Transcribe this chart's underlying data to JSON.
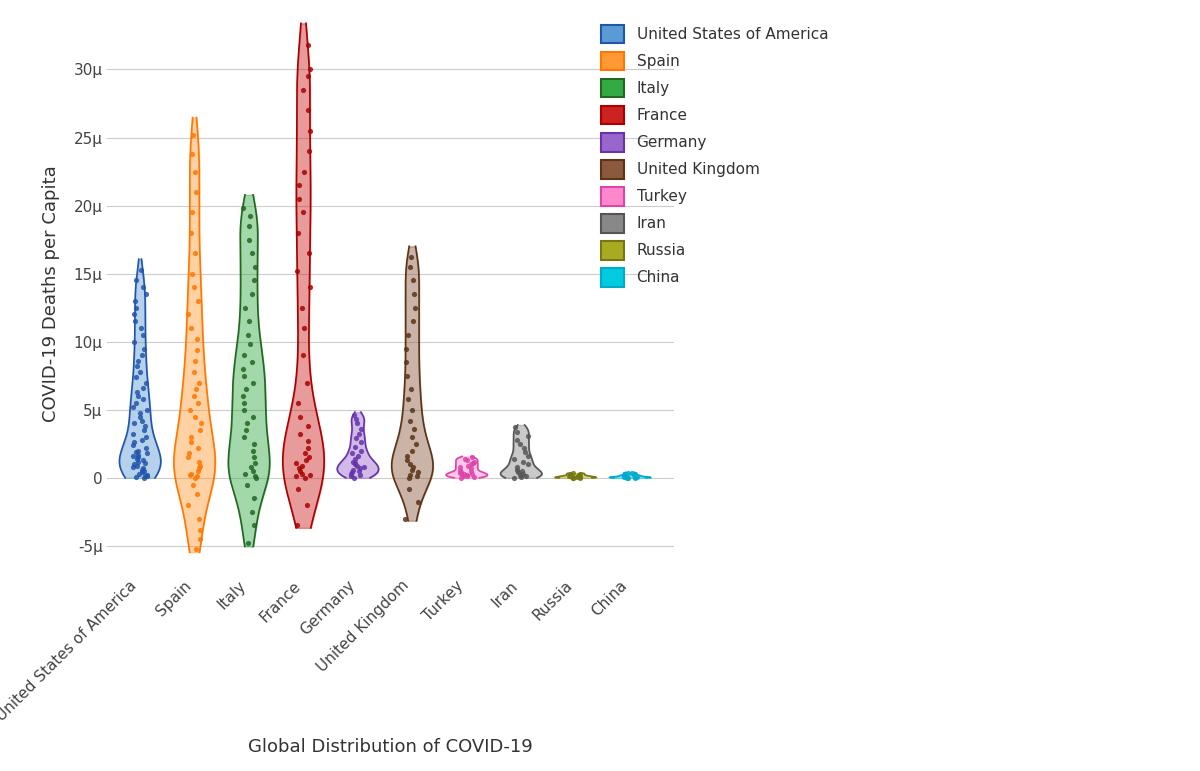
{
  "countries": [
    "United States of America",
    "Spain",
    "Italy",
    "France",
    "Germany",
    "United Kingdom",
    "Turkey",
    "Iran",
    "Russia",
    "China"
  ],
  "colors_fill": [
    "#5B9BD5",
    "#FF9933",
    "#33AA44",
    "#CC2222",
    "#9966CC",
    "#8B5A3C",
    "#FF88CC",
    "#888888",
    "#AAAA22",
    "#00CCDD"
  ],
  "colors_edge": [
    "#2255AA",
    "#FF7700",
    "#226622",
    "#AA0000",
    "#6633AA",
    "#5C3317",
    "#DD44AA",
    "#555555",
    "#777711",
    "#00AACC"
  ],
  "xlabel": "Global Distribution of COVID-19",
  "ylabel": "COVID-19 Deaths per Capita",
  "ytick_vals": [
    -5e-06,
    0,
    5e-06,
    1e-05,
    1.5e-05,
    2e-05,
    2.5e-05,
    3e-05
  ],
  "ytick_labels": [
    "-5μ",
    "0",
    "5μ",
    "10μ",
    "15μ",
    "20μ",
    "25μ",
    "30μ"
  ],
  "ylim": [
    -7e-06,
    3.4e-05
  ],
  "background_color": "#FFFFFF",
  "grid_color": "#CCCCCC",
  "axis_fontsize": 13,
  "tick_fontsize": 11,
  "legend_fontsize": 11,
  "violin_width": 0.38,
  "country_data": {
    "United States of America": {
      "values": [
        0.0,
        0.05,
        0.1,
        0.15,
        0.2,
        0.3,
        0.4,
        0.5,
        0.6,
        0.7,
        0.8,
        0.9,
        1.0,
        1.1,
        1.2,
        1.3,
        1.4,
        1.5,
        1.6,
        1.7,
        1.8,
        1.9,
        2.0,
        2.2,
        2.4,
        2.6,
        2.8,
        3.0,
        3.2,
        3.5,
        3.8,
        4.0,
        4.2,
        4.5,
        4.8,
        5.0,
        5.2,
        5.5,
        5.8,
        6.0,
        6.3,
        6.6,
        7.0,
        7.4,
        7.8,
        8.2,
        8.6,
        9.0,
        9.5,
        10.0,
        10.5,
        11.0,
        11.5,
        12.0,
        12.5,
        13.0,
        13.5,
        14.0,
        14.5,
        15.3
      ],
      "scale": 1e-06
    },
    "Spain": {
      "values": [
        -5.2,
        -4.5,
        -3.8,
        -3.0,
        -2.0,
        -1.2,
        -0.5,
        0.0,
        0.1,
        0.2,
        0.3,
        0.5,
        0.7,
        0.9,
        1.2,
        1.5,
        1.8,
        2.2,
        2.6,
        3.0,
        3.5,
        4.0,
        4.5,
        5.0,
        5.5,
        6.0,
        6.5,
        7.0,
        7.8,
        8.6,
        9.4,
        10.2,
        11.0,
        12.0,
        13.0,
        14.0,
        15.0,
        16.5,
        18.0,
        19.5,
        21.0,
        22.5,
        23.8,
        25.2
      ],
      "scale": 1e-06
    },
    "Italy": {
      "values": [
        -4.8,
        -3.5,
        -2.5,
        -1.5,
        -0.5,
        0.0,
        0.1,
        0.3,
        0.5,
        0.8,
        1.1,
        1.5,
        2.0,
        2.5,
        3.0,
        3.5,
        4.0,
        4.5,
        5.0,
        5.5,
        6.0,
        6.5,
        7.0,
        7.5,
        8.0,
        8.5,
        9.0,
        9.8,
        10.5,
        11.5,
        12.5,
        13.5,
        14.5,
        15.5,
        16.5,
        17.5,
        18.5,
        19.2,
        19.8
      ],
      "scale": 1e-06
    },
    "France": {
      "values": [
        -3.5,
        -2.0,
        -0.8,
        0.0,
        0.1,
        0.2,
        0.3,
        0.5,
        0.7,
        0.9,
        1.1,
        1.3,
        1.5,
        1.8,
        2.2,
        2.7,
        3.2,
        3.8,
        4.5,
        5.5,
        7.0,
        9.0,
        11.0,
        12.5,
        14.0,
        15.2,
        16.5,
        18.0,
        19.5,
        20.5,
        21.5,
        22.5,
        24.0,
        25.5,
        27.0,
        28.5,
        29.5,
        30.0,
        31.8
      ],
      "scale": 1e-06
    },
    "Germany": {
      "values": [
        0.0,
        0.1,
        0.2,
        0.3,
        0.4,
        0.5,
        0.6,
        0.7,
        0.8,
        0.9,
        1.0,
        1.1,
        1.2,
        1.4,
        1.6,
        1.8,
        2.0,
        2.3,
        2.6,
        2.9,
        3.2,
        3.6,
        4.0,
        4.3,
        4.6
      ],
      "scale": 1e-06
    },
    "United Kingdom": {
      "values": [
        -3.0,
        -1.8,
        -0.8,
        0.0,
        0.1,
        0.2,
        0.4,
        0.6,
        0.8,
        1.0,
        1.3,
        1.6,
        2.0,
        2.5,
        3.0,
        3.6,
        4.2,
        5.0,
        5.8,
        6.5,
        7.5,
        8.5,
        9.5,
        10.5,
        11.5,
        12.5,
        13.5,
        14.5,
        15.5,
        16.2
      ],
      "scale": 1e-06
    },
    "Turkey": {
      "values": [
        0.0,
        0.05,
        0.1,
        0.15,
        0.2,
        0.25,
        0.3,
        0.35,
        0.4,
        0.5,
        0.6,
        0.7,
        0.8,
        0.9,
        1.0,
        1.1,
        1.2,
        1.3,
        1.4,
        1.5
      ],
      "scale": 1e-06
    },
    "Iran": {
      "values": [
        0.0,
        0.05,
        0.1,
        0.2,
        0.3,
        0.4,
        0.5,
        0.6,
        0.8,
        1.0,
        1.2,
        1.4,
        1.6,
        1.9,
        2.2,
        2.5,
        2.8,
        3.1,
        3.4,
        3.7
      ],
      "scale": 1e-06
    },
    "Russia": {
      "values": [
        0.0,
        0.01,
        0.02,
        0.04,
        0.06,
        0.08,
        0.1,
        0.12,
        0.15,
        0.18,
        0.22,
        0.26,
        0.3,
        0.34
      ],
      "scale": 1e-06
    },
    "China": {
      "values": [
        0.0,
        0.01,
        0.02,
        0.03,
        0.05,
        0.07,
        0.09,
        0.12,
        0.15,
        0.18,
        0.22,
        0.28,
        0.33,
        0.38
      ],
      "scale": 1e-06
    }
  }
}
